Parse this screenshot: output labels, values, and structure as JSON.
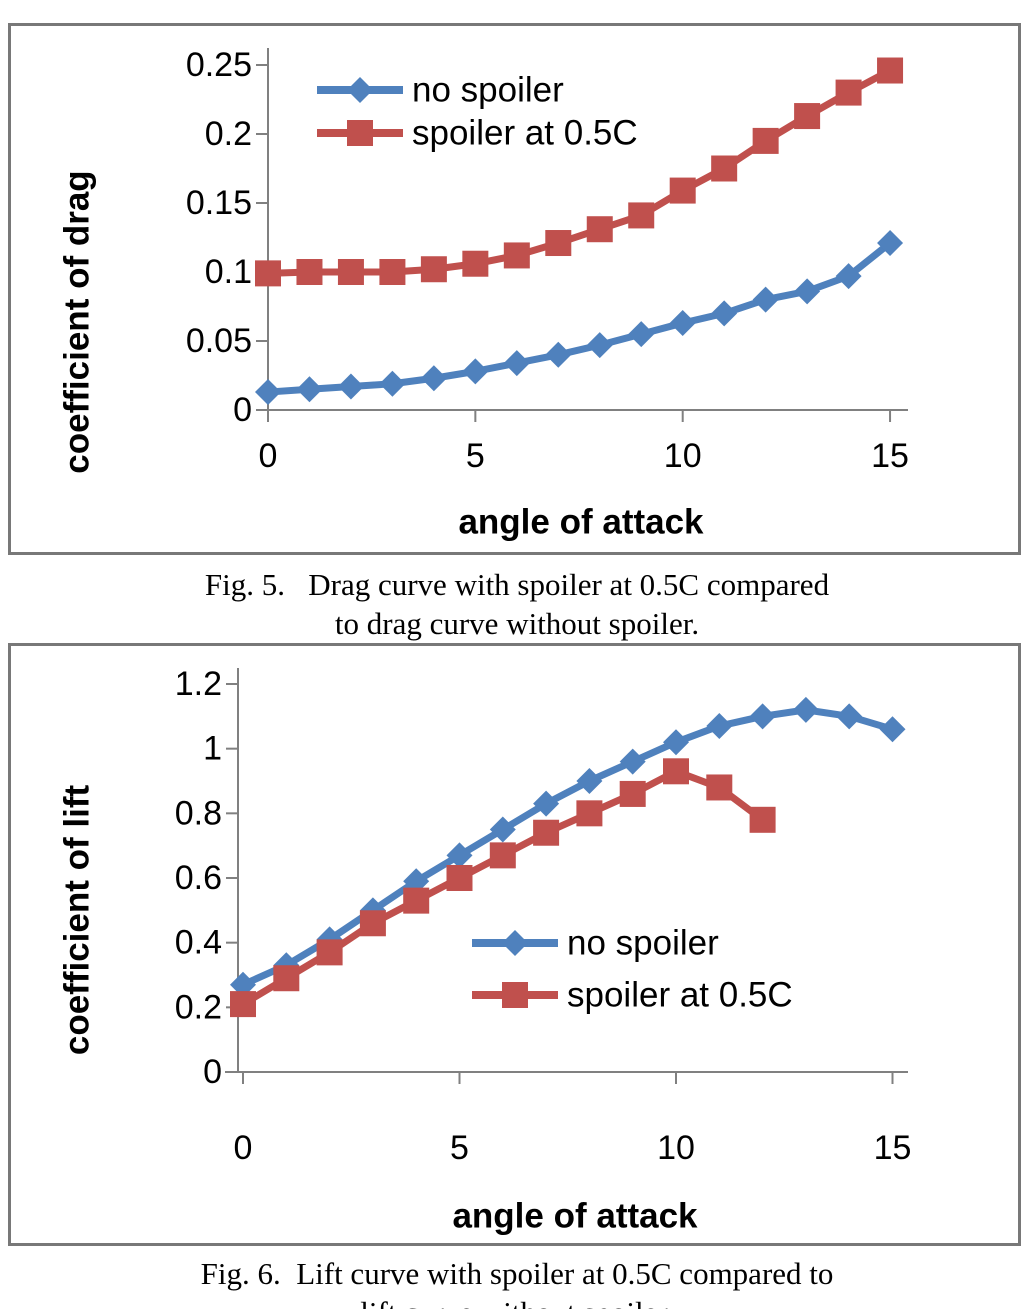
{
  "colors": {
    "no_spoiler_series": "#4F81BD",
    "spoiler_series": "#C0504D",
    "axis_line": "#808080",
    "box_border": "#787878",
    "text": "#000000",
    "background": "#ffffff"
  },
  "figure5": {
    "caption_line1": "Fig. 5.   Drag curve with spoiler at 0.5C compared",
    "caption_line2": "to drag curve without spoiler."
  },
  "figure6": {
    "caption_line1": "Fig. 6.  Lift curve with spoiler at 0.5C compared to",
    "caption_line2": "lift curve without spoiler."
  },
  "chart_data": [
    {
      "id": "drag-chart",
      "type": "line",
      "title": "",
      "xlabel": "angle of attack",
      "ylabel": "coefficient of drag",
      "x": [
        0,
        1,
        2,
        3,
        4,
        5,
        6,
        7,
        8,
        9,
        10,
        11,
        12,
        13,
        14,
        15
      ],
      "xlim": [
        0,
        15
      ],
      "ylim": [
        0,
        0.25
      ],
      "grid": false,
      "x_ticks": {
        "values": [
          0,
          5,
          10,
          15
        ],
        "labels": [
          "0",
          "5",
          "10",
          "15"
        ]
      },
      "y_ticks": {
        "values": [
          0,
          0.05,
          0.1,
          0.15,
          0.2,
          0.25
        ],
        "labels": [
          "0",
          "0.05",
          "0.1",
          "0.15",
          "0.2",
          "0.25"
        ]
      },
      "legend": {
        "position": "inside-top-left"
      },
      "series": [
        {
          "name": "no spoiler",
          "marker": "diamond",
          "color_key": "no_spoiler_series",
          "values": [
            0.013,
            0.015,
            0.017,
            0.019,
            0.023,
            0.028,
            0.034,
            0.04,
            0.047,
            0.055,
            0.063,
            0.07,
            0.08,
            0.086,
            0.097,
            0.121
          ]
        },
        {
          "name": "spoiler at 0.5C",
          "marker": "square",
          "color_key": "spoiler_series",
          "values": [
            0.099,
            0.1,
            0.1,
            0.1,
            0.102,
            0.106,
            0.112,
            0.121,
            0.131,
            0.141,
            0.159,
            0.175,
            0.195,
            0.213,
            0.23,
            0.246
          ]
        }
      ]
    },
    {
      "id": "lift-chart",
      "type": "line",
      "title": "",
      "xlabel": "angle of attack",
      "ylabel": "coefficient of lift",
      "x": [
        0,
        1,
        2,
        3,
        4,
        5,
        6,
        7,
        8,
        9,
        10,
        11,
        12,
        13,
        14,
        15
      ],
      "xlim": [
        0,
        15
      ],
      "ylim": [
        0,
        1.2
      ],
      "grid": false,
      "x_ticks": {
        "values": [
          0,
          5,
          10,
          15
        ],
        "labels": [
          "0",
          "5",
          "10",
          "15"
        ]
      },
      "y_ticks": {
        "values": [
          0,
          0.2,
          0.4,
          0.6,
          0.8,
          1,
          1.2
        ],
        "labels": [
          "0",
          "0.2",
          "0.4",
          "0.6",
          "0.8",
          "1",
          "1.2"
        ]
      },
      "legend": {
        "position": "inside-bottom-right"
      },
      "series": [
        {
          "name": "no spoiler",
          "marker": "diamond",
          "color_key": "no_spoiler_series",
          "values": [
            0.27,
            0.33,
            0.41,
            0.5,
            0.59,
            0.67,
            0.75,
            0.83,
            0.9,
            0.96,
            1.02,
            1.07,
            1.1,
            1.12,
            1.1,
            1.06
          ]
        },
        {
          "name": "spoiler at 0.5C",
          "marker": "square",
          "color_key": "spoiler_series",
          "values": [
            0.21,
            0.29,
            0.37,
            0.46,
            0.53,
            0.6,
            0.67,
            0.74,
            0.8,
            0.86,
            0.93,
            0.88,
            0.78
          ]
        }
      ]
    }
  ]
}
